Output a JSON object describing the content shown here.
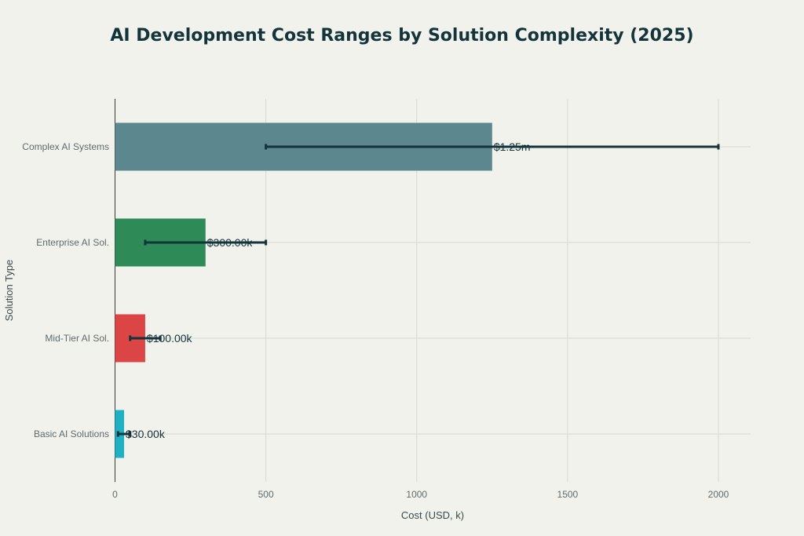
{
  "chart_data": {
    "type": "bar",
    "orientation": "horizontal",
    "title": "AI Development Cost Ranges by Solution Complexity (2025)",
    "xlabel": "Cost (USD, k)",
    "ylabel": "Solution Type",
    "xlim": [
      0,
      2100
    ],
    "x_ticks": [
      0,
      500,
      1000,
      1500,
      2000
    ],
    "grid": true,
    "categories": [
      "Basic AI Solutions",
      "Mid-Tier AI Sol.",
      "Enterprise AI Sol.",
      "Complex AI Systems"
    ],
    "values": [
      30,
      100,
      300,
      1250
    ],
    "error_low": [
      10,
      50,
      100,
      500
    ],
    "error_high": [
      50,
      150,
      500,
      2000
    ],
    "data_labels": [
      "$30.00k",
      "$100.00k",
      "$300.00k",
      "$1.25m"
    ],
    "colors": [
      "#1fb0c4",
      "#db4545",
      "#2e8b57",
      "#5d878f"
    ],
    "error_color": "#13343b"
  }
}
